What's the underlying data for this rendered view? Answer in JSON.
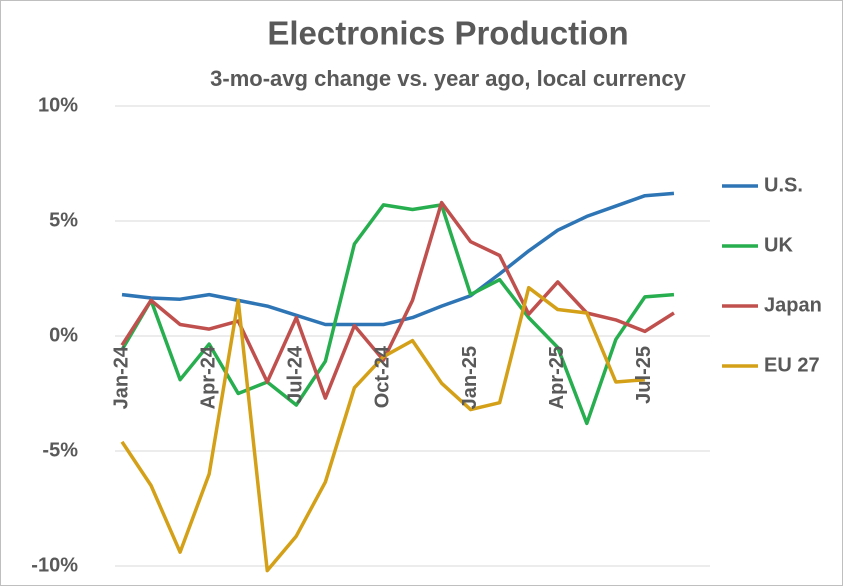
{
  "chart_data": {
    "type": "line",
    "title": "Electronics Production",
    "subtitle": "3-mo-avg change vs. year ago, local currency",
    "categories": [
      "Jan-24",
      null,
      null,
      "Apr-24",
      null,
      null,
      "Jul-24",
      null,
      null,
      "Oct-24",
      null,
      null,
      "Jan-25",
      null,
      null,
      "Apr-25",
      null,
      null,
      "Jul-25",
      null
    ],
    "series": [
      {
        "name": "U.S.",
        "color": "#2e75b6",
        "values": [
          1.8,
          1.65,
          1.6,
          1.8,
          1.55,
          1.3,
          0.9,
          0.5,
          0.5,
          0.5,
          0.8,
          1.3,
          1.75,
          2.7,
          3.7,
          4.6,
          5.2,
          5.65,
          6.1,
          6.2
        ]
      },
      {
        "name": "UK",
        "color": "#27ae4f",
        "values": [
          -0.6,
          1.55,
          -1.9,
          -0.35,
          -2.5,
          -2.0,
          -3.0,
          -1.1,
          4.0,
          5.7,
          5.5,
          5.7,
          1.8,
          2.45,
          0.8,
          -0.5,
          -3.8,
          -0.15,
          1.7,
          1.8
        ]
      },
      {
        "name": "Japan",
        "color": "#c0504d",
        "values": [
          -0.4,
          1.55,
          0.5,
          0.3,
          0.65,
          -2.0,
          0.8,
          -2.7,
          0.45,
          -1.05,
          1.55,
          5.8,
          4.1,
          3.5,
          0.95,
          2.35,
          1.0,
          0.7,
          0.2,
          1.0
        ]
      },
      {
        "name": "EU 27",
        "color": "#d4a017",
        "values": [
          -4.6,
          -6.5,
          -9.4,
          -6.0,
          1.55,
          -10.2,
          -8.7,
          -6.35,
          -2.25,
          -0.9,
          -0.2,
          -2.05,
          -3.2,
          -2.9,
          2.1,
          1.15,
          1.0,
          -2.0,
          -1.9,
          null
        ]
      }
    ],
    "ylim": [
      -10,
      10
    ],
    "yticks": [
      {
        "value": -10,
        "label": "-10%"
      },
      {
        "value": -5,
        "label": "-5%"
      },
      {
        "value": 0,
        "label": "0%"
      },
      {
        "value": 5,
        "label": "5%"
      },
      {
        "value": 10,
        "label": "10%"
      }
    ],
    "grid": true,
    "legend": "right"
  }
}
